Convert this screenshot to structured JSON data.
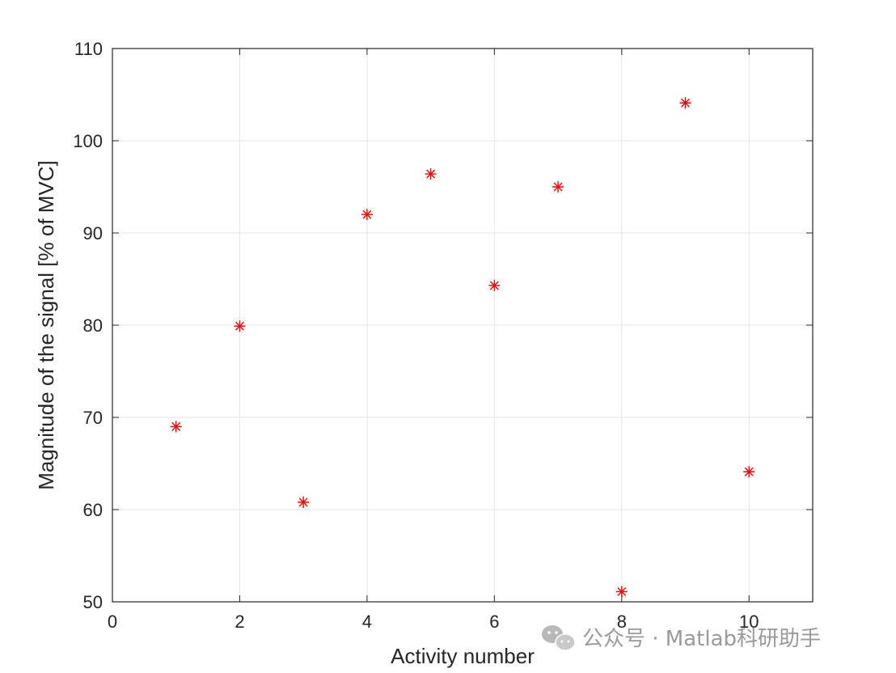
{
  "chart_data": {
    "type": "scatter",
    "title": "",
    "xlabel": "Activity number",
    "ylabel": "Magnitude of the signal [% of MVC]",
    "xlim": [
      0,
      11
    ],
    "ylim": [
      50,
      110
    ],
    "xticks": [
      0,
      2,
      4,
      6,
      8,
      10
    ],
    "yticks": [
      50,
      60,
      70,
      80,
      90,
      100,
      110
    ],
    "grid": true,
    "marker": "asterisk",
    "series": [
      {
        "color": "#ff0000",
        "x": [
          1,
          2,
          3,
          4,
          5,
          6,
          7,
          8,
          9,
          10
        ],
        "y": [
          69,
          79.9,
          60.8,
          92,
          96.4,
          84.3,
          95,
          51.1,
          104.1,
          64.1
        ]
      }
    ]
  },
  "watermark": {
    "text": "公众号 · Matlab科研助手",
    "icon": "wechat-icon"
  }
}
